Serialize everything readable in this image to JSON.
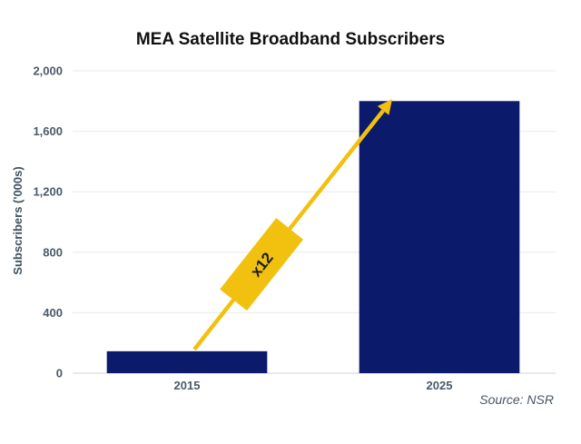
{
  "chart_data": {
    "type": "bar",
    "title": "MEA Satellite Broadband Subscribers",
    "categories": [
      "2015",
      "2025"
    ],
    "values": [
      145,
      1800
    ],
    "xlabel": "",
    "ylabel": "Subscribers ('000s)",
    "ylim": [
      0,
      2000
    ],
    "yticks": [
      "0",
      "400",
      "800",
      "1,200",
      "1,600",
      "2,000"
    ],
    "ytick_values": [
      0,
      400,
      800,
      1200,
      1600,
      2000
    ],
    "grid": true,
    "legend": "none",
    "bar_color": "#0c1a6b",
    "annotation": {
      "text": "x12",
      "from_category": "2015",
      "to_category": "2025",
      "arrow_color": "#f2c10f",
      "label_color": "#f2c10f"
    },
    "source": "Source: NSR"
  }
}
